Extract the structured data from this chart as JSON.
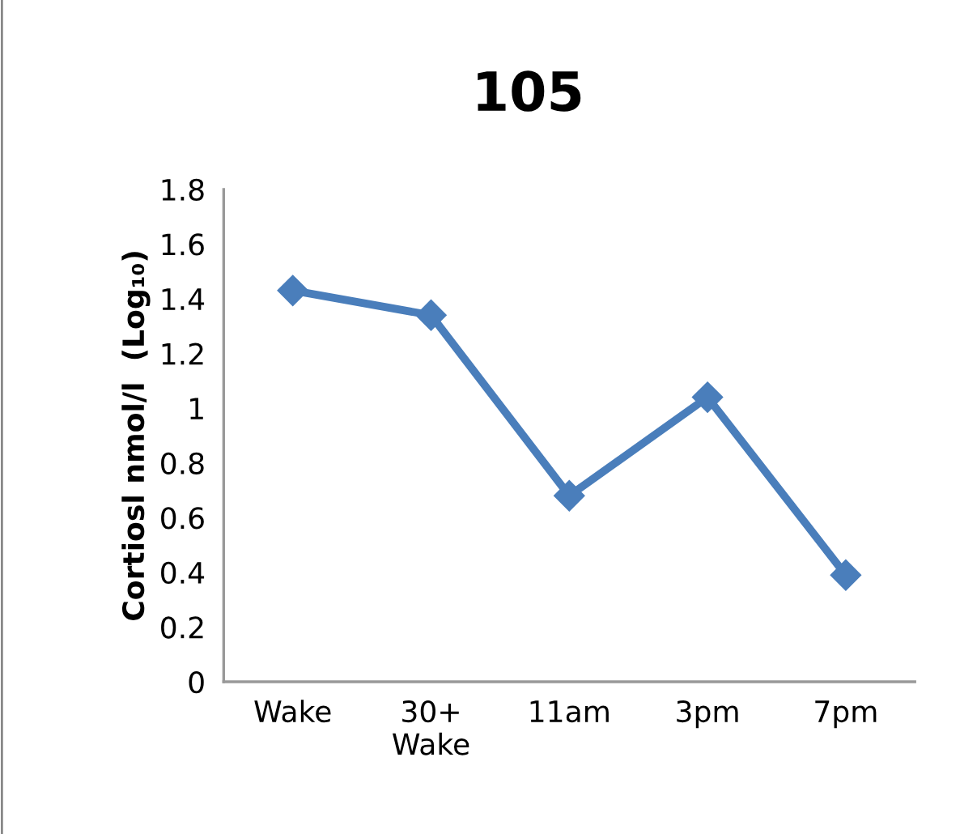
{
  "chart_data": {
    "type": "line",
    "title": "105",
    "ylabel": "Cortiosl nmol/l  (Log₁₀)",
    "categories": [
      "Wake",
      "30+\nWake",
      "11am",
      "3pm",
      "7pm"
    ],
    "series": [
      {
        "color": "#4a7ebb",
        "values": [
          1.43,
          1.34,
          0.68,
          1.04,
          0.39
        ]
      }
    ],
    "ylim": [
      0,
      1.8
    ],
    "yticks": [
      0,
      0.2,
      0.4,
      0.6,
      0.8,
      1,
      1.2,
      1.4,
      1.6,
      1.8
    ],
    "grid": false,
    "marker": "diamond",
    "line_style": "solid"
  }
}
